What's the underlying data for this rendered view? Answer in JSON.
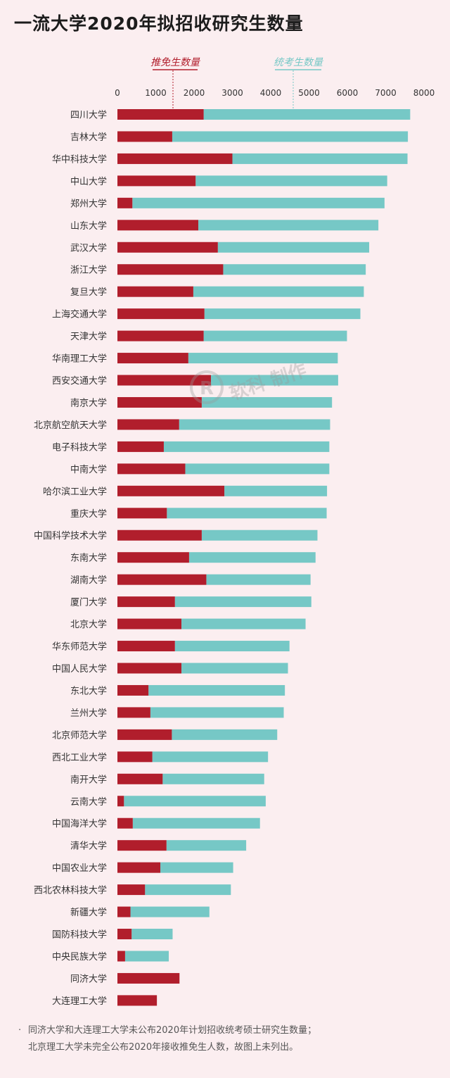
{
  "title": "一流大学2020年拟招收研究生数量",
  "watermark_text": "软科 制作",
  "footnote": {
    "bullet": "·",
    "line1": "同济大学和大连理工大学未公布2020年计划招收统考硕士研究生数量；",
    "line2": "北京理工大学未完全公布2020年接收推免生人数，故图上未列出。"
  },
  "colors": {
    "tuimian": "#b11e2c",
    "tongkao": "#76c8c6",
    "background": "#fbeef0"
  },
  "chart_data": {
    "type": "bar",
    "orientation": "horizontal",
    "stacked": true,
    "xlim": [
      0,
      8000
    ],
    "xticks": [
      0,
      1000,
      2000,
      3000,
      4000,
      5000,
      6000,
      7000,
      8000
    ],
    "legend_placement": "top",
    "categories": [
      "四川大学",
      "吉林大学",
      "华中科技大学",
      "中山大学",
      "郑州大学",
      "山东大学",
      "武汉大学",
      "浙江大学",
      "复旦大学",
      "上海交通大学",
      "天津大学",
      "华南理工大学",
      "西安交通大学",
      "南京大学",
      "北京航空航天大学",
      "电子科技大学",
      "中南大学",
      "哈尔滨工业大学",
      "重庆大学",
      "中国科学技术大学",
      "东南大学",
      "湖南大学",
      "厦门大学",
      "北京大学",
      "华东师范大学",
      "中国人民大学",
      "东北大学",
      "兰州大学",
      "北京师范大学",
      "西北工业大学",
      "南开大学",
      "云南大学",
      "中国海洋大学",
      "清华大学",
      "中国农业大学",
      "西北农林科技大学",
      "新疆大学",
      "国防科技大学",
      "中央民族大学",
      "同济大学",
      "大连理工大学"
    ],
    "series": [
      {
        "name": "推免生数量",
        "color": "#b11e2c",
        "values": [
          2250,
          1430,
          3000,
          2040,
          390,
          2110,
          2620,
          2760,
          1980,
          2270,
          2250,
          1850,
          2440,
          2200,
          1610,
          1210,
          1770,
          2790,
          1290,
          2200,
          1870,
          2320,
          1500,
          1670,
          1500,
          1670,
          810,
          860,
          1420,
          910,
          1180,
          170,
          400,
          1280,
          1120,
          720,
          340,
          370,
          200,
          1620,
          1030
        ]
      },
      {
        "name": "统考生数量",
        "color": "#76c8c6",
        "values": [
          5390,
          6150,
          4570,
          5000,
          6580,
          4700,
          3950,
          3720,
          4450,
          4070,
          3740,
          3900,
          3320,
          3400,
          3940,
          4320,
          3760,
          2680,
          4170,
          3020,
          3300,
          2720,
          3560,
          3240,
          2990,
          2780,
          3560,
          3480,
          2750,
          3020,
          2650,
          3700,
          3320,
          2080,
          1900,
          2240,
          2060,
          1070,
          1140,
          0,
          0
        ]
      }
    ]
  }
}
